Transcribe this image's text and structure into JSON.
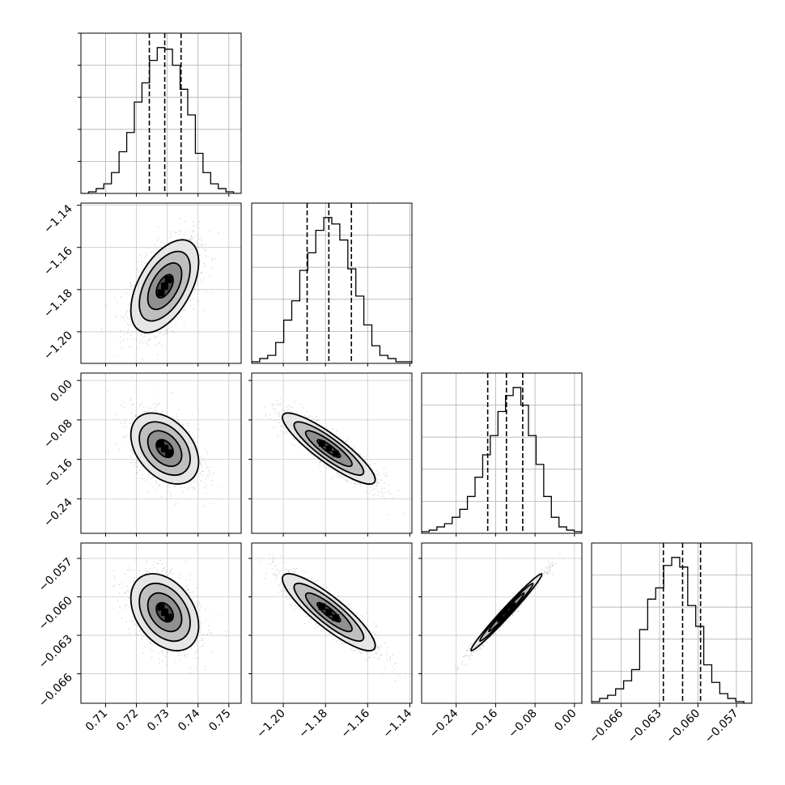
{
  "chart_data": {
    "type": "corner",
    "grid": true,
    "parameters": [
      {
        "range": [
          0.702,
          0.754
        ],
        "ticks": [
          0.71,
          0.72,
          0.73,
          0.74,
          0.75
        ],
        "tick_labels": [
          "0.71",
          "0.72",
          "0.73",
          "0.74",
          "0.75"
        ],
        "quantiles": [
          0.7242,
          0.7292,
          0.7345
        ],
        "histogram": [
          0,
          1,
          3,
          6,
          13,
          26,
          38,
          57,
          69,
          83,
          91,
          90,
          80,
          65,
          49,
          25,
          13,
          6,
          3,
          1,
          0
        ]
      },
      {
        "range": [
          -1.215,
          -1.139
        ],
        "ticks": [
          -1.2,
          -1.18,
          -1.16,
          -1.14
        ],
        "tick_labels": [
          "−1.20",
          "−1.18",
          "−1.16",
          "−1.14"
        ],
        "quantiles": [
          -1.1887,
          -1.1784,
          -1.1677
        ],
        "histogram": [
          1,
          3,
          5,
          13,
          27,
          39,
          58,
          69,
          83,
          91,
          87,
          77,
          59,
          42,
          24,
          11,
          5,
          3,
          1,
          1
        ]
      },
      {
        "range": [
          -0.31,
          0.015
        ],
        "ticks": [
          -0.24,
          -0.16,
          -0.08,
          0.0
        ],
        "tick_labels": [
          "−0.24",
          "−0.16",
          "−0.08",
          "0.00"
        ],
        "quantiles": [
          -0.176,
          -0.138,
          -0.105
        ],
        "histogram": [
          1,
          2,
          4,
          6,
          10,
          15,
          23,
          35,
          49,
          61,
          76,
          86,
          91,
          80,
          61,
          43,
          23,
          10,
          4,
          2,
          1
        ]
      },
      {
        "range": [
          -0.0683,
          -0.0558
        ],
        "ticks": [
          -0.066,
          -0.063,
          -0.06,
          -0.057
        ],
        "tick_labels": [
          "−0.066",
          "−0.063",
          "−0.060",
          "−0.057"
        ],
        "quantiles": [
          -0.0627,
          -0.0612,
          -0.0598
        ],
        "histogram": [
          1,
          3,
          5,
          9,
          14,
          21,
          46,
          65,
          72,
          86,
          91,
          85,
          61,
          48,
          24,
          13,
          6,
          3,
          1,
          0
        ]
      }
    ],
    "pairs": [
      {
        "row": 1,
        "col": 0,
        "center": [
          0.7292,
          -1.1784
        ],
        "sd": [
          0.0055,
          0.011
        ],
        "corr": 0.52
      },
      {
        "row": 2,
        "col": 0,
        "center": [
          0.7292,
          -0.138
        ],
        "sd": [
          0.0055,
          0.036
        ],
        "corr": -0.38
      },
      {
        "row": 2,
        "col": 1,
        "center": [
          -1.1784,
          -0.138
        ],
        "sd": [
          0.011,
          0.036
        ],
        "corr": -0.88
      },
      {
        "row": 3,
        "col": 0,
        "center": [
          0.7292,
          -0.0612
        ],
        "sd": [
          0.0055,
          0.0015
        ],
        "corr": -0.36
      },
      {
        "row": 3,
        "col": 1,
        "center": [
          -1.1784,
          -0.0612
        ],
        "sd": [
          0.011,
          0.0015
        ],
        "corr": -0.87
      },
      {
        "row": 3,
        "col": 2,
        "center": [
          -0.138,
          -0.0612
        ],
        "sd": [
          0.036,
          0.0015
        ],
        "corr": 0.985
      }
    ]
  }
}
